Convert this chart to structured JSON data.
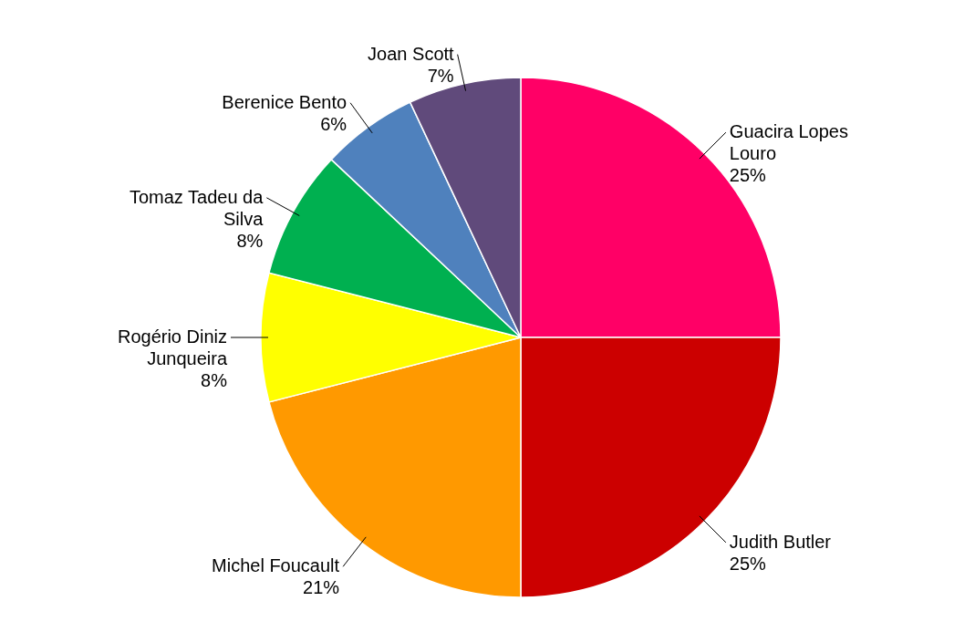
{
  "chart_data": {
    "type": "pie",
    "categories": [
      "Guacira Lopes Louro",
      "Judith Butler",
      "Michel Foucault",
      "Rogério Diniz Junqueira",
      "Tomaz Tadeu da Silva",
      "Berenice Bento",
      "Joan Scott"
    ],
    "values": [
      25,
      25,
      21,
      8,
      8,
      6,
      7
    ],
    "value_labels": [
      "25%",
      "25%",
      "21%",
      "8%",
      "8%",
      "6%",
      "7%"
    ],
    "colors": [
      "#ff0066",
      "#cc0000",
      "#ff9900",
      "#ffff00",
      "#00b050",
      "#4f81bd",
      "#604a7b"
    ]
  }
}
